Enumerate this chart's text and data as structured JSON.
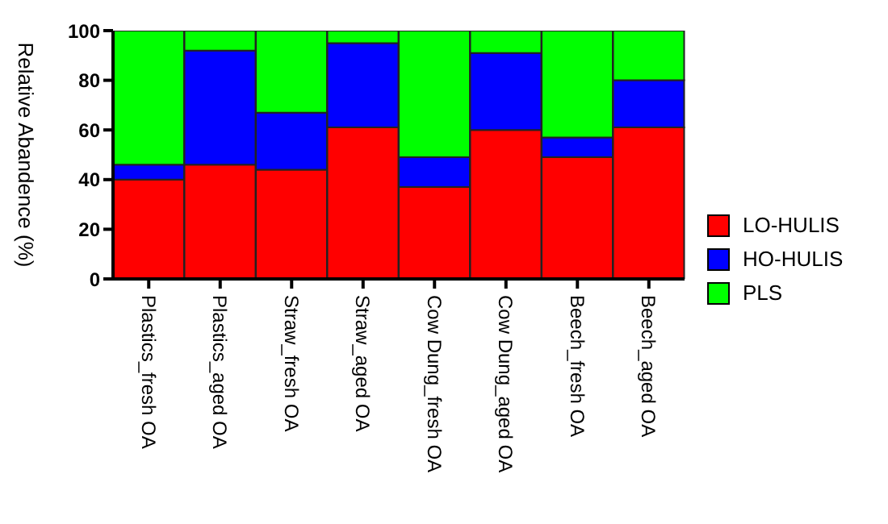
{
  "chart_data": {
    "type": "bar",
    "stacked": true,
    "ylabel": "Relative Abandence (%)",
    "categories": [
      "Plastics_fresh OA",
      "Plastics_aged OA",
      "Straw_fresh OA",
      "Straw_aged OA",
      "Cow Dung_fresh OA",
      "Cow Dung_aged OA",
      "Beech_fresh OA",
      "Beech_aged OA"
    ],
    "series": [
      {
        "name": "LO-HULIS",
        "color": "#ff0000",
        "values": [
          40,
          46,
          44,
          61,
          37,
          60,
          49,
          61
        ]
      },
      {
        "name": "HO-HULIS",
        "color": "#0000ff",
        "values": [
          6,
          46,
          23,
          34,
          12,
          31,
          8,
          19
        ]
      },
      {
        "name": "PLS",
        "color": "#00ff00",
        "values": [
          54,
          8,
          33,
          5,
          51,
          9,
          43,
          20
        ]
      }
    ],
    "ylim": [
      0,
      100
    ],
    "yticks": [
      0,
      20,
      40,
      60,
      80,
      100
    ],
    "legend": "right"
  }
}
